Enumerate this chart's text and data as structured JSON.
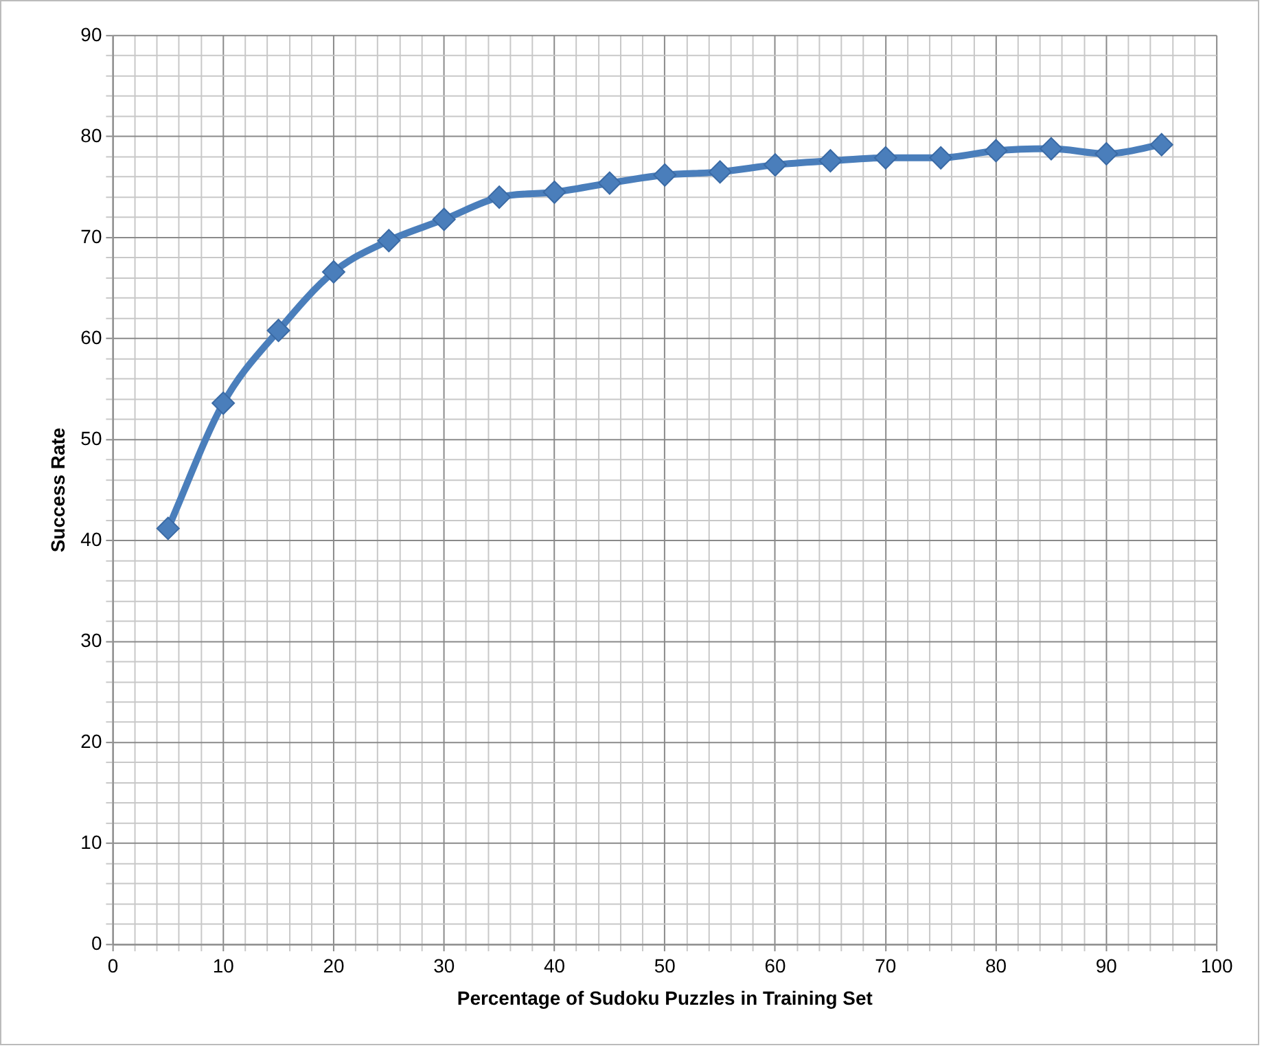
{
  "chart_data": {
    "type": "line",
    "xlabel": "Percentage of Sudoku Puzzles in Training Set",
    "ylabel": "Success Rate",
    "x": [
      5,
      10,
      15,
      20,
      25,
      30,
      35,
      40,
      45,
      50,
      55,
      60,
      65,
      70,
      75,
      80,
      85,
      90,
      95
    ],
    "series": [
      {
        "color": "#4a7ebb",
        "values": [
          41.2,
          53.6,
          60.8,
          66.6,
          69.7,
          71.8,
          74.0,
          74.5,
          75.4,
          76.2,
          76.5,
          77.2,
          77.6,
          77.9,
          77.9,
          78.6,
          78.8,
          78.3,
          79.2
        ]
      }
    ],
    "xlim": [
      0,
      100
    ],
    "xticks": [
      0,
      {
        "value": 2,
        "label": null
      },
      {
        "value": 4,
        "label": null
      },
      {
        "value": 6,
        "label": null
      },
      {
        "value": 8,
        "label": null
      },
      10,
      {
        "value": 12,
        "label": null
      },
      {
        "value": 14,
        "label": null
      },
      {
        "value": 16,
        "label": null
      },
      {
        "value": 18,
        "label": null
      },
      20,
      {
        "value": 22,
        "label": null
      },
      {
        "value": 24,
        "label": null
      },
      {
        "value": 26,
        "label": null
      },
      {
        "value": 28,
        "label": null
      },
      30,
      {
        "value": 32,
        "label": null
      },
      {
        "value": 34,
        "label": null
      },
      {
        "value": 36,
        "label": null
      },
      {
        "value": 38,
        "label": null
      },
      40,
      {
        "value": 42,
        "label": null
      },
      {
        "value": 44,
        "label": null
      },
      {
        "value": 46,
        "label": null
      },
      {
        "value": 48,
        "label": null
      },
      50,
      {
        "value": 52,
        "label": null
      },
      {
        "value": 54,
        "label": null
      },
      {
        "value": 56,
        "label": null
      },
      {
        "value": 58,
        "label": null
      },
      60,
      {
        "value": 62,
        "label": null
      },
      {
        "value": 64,
        "label": null
      },
      {
        "value": 66,
        "label": null
      },
      {
        "value": 68,
        "label": null
      },
      70,
      {
        "value": 72,
        "label": null
      },
      {
        "value": 74,
        "label": null
      },
      {
        "value": 76,
        "label": null
      },
      {
        "value": 78,
        "label": null
      },
      80,
      {
        "value": 82,
        "label": null
      },
      {
        "value": 84,
        "label": null
      },
      {
        "value": 86,
        "label": null
      },
      {
        "value": 88,
        "label": null
      },
      90,
      {
        "value": 92,
        "label": null
      },
      {
        "value": 94,
        "label": null
      },
      {
        "value": 96,
        "label": null
      },
      {
        "value": 98,
        "label": null
      },
      100
    ],
    "ylim": [
      0,
      90
    ],
    "yticks": [
      0,
      {
        "value": 2,
        "label": null
      },
      {
        "value": 4,
        "label": null
      },
      {
        "value": 6,
        "label": null
      },
      {
        "value": 8,
        "label": null
      },
      10,
      {
        "value": 12,
        "label": null
      },
      {
        "value": 14,
        "label": null
      },
      {
        "value": 16,
        "label": null
      },
      {
        "value": 18,
        "label": null
      },
      20,
      {
        "value": 22,
        "label": null
      },
      {
        "value": 24,
        "label": null
      },
      {
        "value": 26,
        "label": null
      },
      {
        "value": 28,
        "label": null
      },
      30,
      {
        "value": 32,
        "label": null
      },
      {
        "value": 34,
        "label": null
      },
      {
        "value": 36,
        "label": null
      },
      {
        "value": 38,
        "label": null
      },
      40,
      {
        "value": 42,
        "label": null
      },
      {
        "value": 44,
        "label": null
      },
      {
        "value": 46,
        "label": null
      },
      {
        "value": 48,
        "label": null
      },
      50,
      {
        "value": 52,
        "label": null
      },
      {
        "value": 54,
        "label": null
      },
      {
        "value": 56,
        "label": null
      },
      {
        "value": 58,
        "label": null
      },
      60,
      {
        "value": 62,
        "label": null
      },
      {
        "value": 64,
        "label": null
      },
      {
        "value": 66,
        "label": null
      },
      {
        "value": 68,
        "label": null
      },
      70,
      {
        "value": 72,
        "label": null
      },
      {
        "value": 74,
        "label": null
      },
      {
        "value": 76,
        "label": null
      },
      {
        "value": 78,
        "label": null
      },
      80,
      {
        "value": 82,
        "label": null
      },
      {
        "value": 84,
        "label": null
      },
      {
        "value": 86,
        "label": null
      },
      {
        "value": 88,
        "label": null
      },
      90
    ],
    "grid": true,
    "marker": "diamond",
    "line_style": "solid"
  }
}
